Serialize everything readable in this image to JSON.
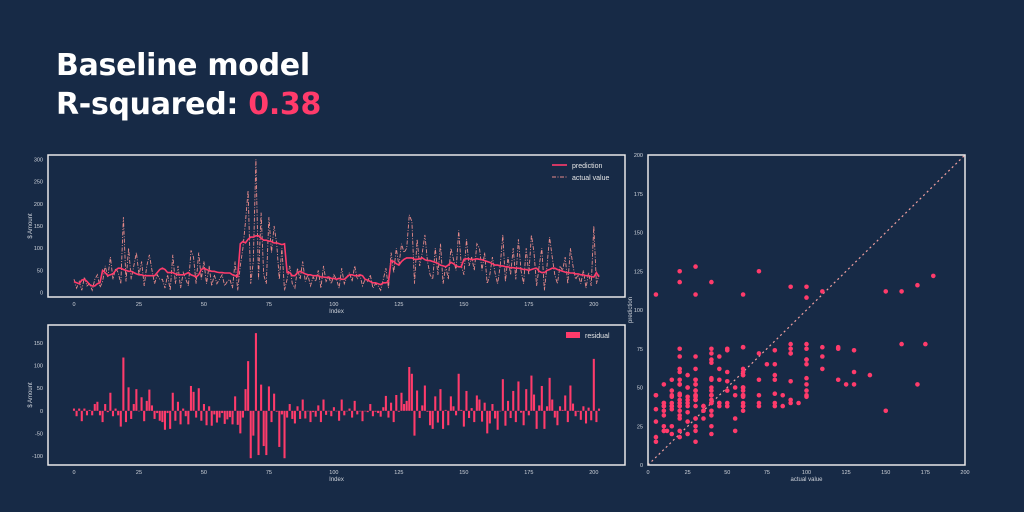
{
  "header": {
    "title_line1": "Baseline model",
    "r2_label": "R-squared:",
    "r2_value": "0.38",
    "accent_color": "#ff3b6b"
  },
  "colors": {
    "background": "#172a46",
    "prediction": "#ff3b6b",
    "actual": "#e98a8a",
    "residual": "#ff3b6b",
    "scatter": "#ff3b6b",
    "frame": "#e8e8e8"
  },
  "chart_data": [
    {
      "type": "line",
      "xlabel": "Index",
      "ylabel": "$ Amount",
      "xticks": [
        0,
        25,
        50,
        75,
        100,
        125,
        150,
        175,
        200
      ],
      "yticks": [
        0,
        50,
        100,
        150,
        200,
        250,
        300
      ],
      "xlim": [
        -10,
        212
      ],
      "ylim": [
        -10,
        310
      ],
      "grid": false,
      "legend": "top-right",
      "series": [
        {
          "name": "prediction",
          "style": "solid",
          "values": [
            25,
            22,
            20,
            28,
            30,
            25,
            18,
            15,
            15,
            20,
            22,
            50,
            45,
            38,
            40,
            42,
            50,
            55,
            55,
            52,
            50,
            48,
            48,
            45,
            42,
            40,
            40,
            38,
            38,
            38,
            38,
            38,
            45,
            52,
            55,
            52,
            45,
            45,
            45,
            42,
            40,
            40,
            40,
            42,
            45,
            40,
            38,
            35,
            40,
            52,
            55,
            52,
            50,
            48,
            48,
            46,
            45,
            45,
            44,
            44,
            44,
            40,
            38,
            36,
            110,
            115,
            112,
            120,
            125,
            125,
            128,
            128,
            122,
            118,
            118,
            116,
            115,
            112,
            112,
            110,
            108,
            110,
            45,
            45,
            38,
            38,
            45,
            48,
            45,
            42,
            40,
            40,
            38,
            38,
            38,
            35,
            35,
            34,
            35,
            32,
            32,
            30,
            32,
            30,
            30,
            35,
            40,
            40,
            38,
            38,
            40,
            38,
            30,
            28,
            25,
            22,
            22,
            20,
            18,
            22,
            22,
            25,
            72,
            70,
            65,
            62,
            70,
            75,
            78,
            78,
            78,
            75,
            75,
            76,
            78,
            74,
            72,
            72,
            70,
            68,
            66,
            62,
            60,
            58,
            62,
            68,
            65,
            60,
            58,
            58,
            75,
            76,
            76,
            74,
            75,
            76,
            75,
            74,
            72,
            70,
            68,
            65,
            62,
            62,
            60,
            60,
            58,
            58,
            56,
            56,
            55,
            55,
            54,
            52,
            52,
            50,
            52,
            54,
            55,
            48,
            45,
            45,
            50,
            52,
            55,
            55,
            52,
            50,
            48,
            46,
            45,
            44,
            44,
            42,
            42,
            40,
            40,
            38,
            38,
            36,
            35,
            45,
            35
          ]
        },
        {
          "name": "actual value",
          "style": "dash-dot",
          "values": [
            30,
            10,
            25,
            5,
            35,
            15,
            20,
            5,
            30,
            40,
            12,
            25,
            60,
            35,
            80,
            30,
            55,
            45,
            20,
            170,
            25,
            100,
            30,
            60,
            90,
            40,
            70,
            15,
            60,
            85,
            50,
            20,
            40,
            30,
            30,
            10,
            40,
            5,
            85,
            20,
            60,
            10,
            45,
            30,
            15,
            95,
            80,
            20,
            90,
            30,
            70,
            20,
            60,
            15,
            40,
            20,
            30,
            40,
            15,
            25,
            30,
            10,
            70,
            5,
            60,
            100,
            160,
            230,
            20,
            70,
            300,
            30,
            180,
            40,
            20,
            170,
            90,
            150,
            110,
            30,
            100,
            5,
            30,
            60,
            20,
            10,
            55,
            30,
            70,
            25,
            40,
            15,
            35,
            25,
            50,
            10,
            60,
            25,
            35,
            20,
            40,
            30,
            10,
            55,
            20,
            35,
            45,
            25,
            60,
            30,
            40,
            15,
            30,
            25,
            40,
            10,
            20,
            15,
            5,
            30,
            55,
            10,
            90,
            45,
            100,
            60,
            110,
            90,
            100,
            175,
            160,
            20,
            120,
            60,
            90,
            130,
            70,
            40,
            30,
            100,
            40,
            110,
            20,
            60,
            30,
            100,
            75,
            50,
            140,
            60,
            40,
            120,
            60,
            80,
            50,
            110,
            100,
            50,
            90,
            20,
            40,
            80,
            45,
            20,
            60,
            130,
            25,
            80,
            40,
            100,
            30,
            120,
            50,
            20,
            100,
            40,
            130,
            90,
            15,
            60,
            100,
            5,
            60,
            125,
            80,
            40,
            20,
            60,
            50,
            80,
            20,
            100,
            60,
            30,
            40,
            20,
            50,
            10,
            45,
            15,
            150,
            20,
            40
          ]
        }
      ]
    },
    {
      "type": "bar",
      "xlabel": "Index",
      "ylabel": "$ Amount",
      "xticks": [
        0,
        25,
        50,
        75,
        100,
        125,
        150,
        175,
        200
      ],
      "yticks": [
        -100,
        -50,
        0,
        50,
        100,
        150
      ],
      "xlim": [
        -10,
        212
      ],
      "ylim": [
        -120,
        190
      ],
      "grid": false,
      "legend": "top-right",
      "series": [
        {
          "name": "residual",
          "derived": "actual value - prediction"
        }
      ]
    },
    {
      "type": "scatter",
      "xlabel": "actual value",
      "ylabel": "prediction",
      "xticks": [
        0,
        25,
        50,
        75,
        100,
        125,
        150,
        175,
        200
      ],
      "yticks": [
        0,
        25,
        50,
        75,
        100,
        125,
        150,
        175,
        200
      ],
      "xlim": [
        0,
        200
      ],
      "ylim": [
        0,
        200
      ],
      "grid": false,
      "reference_line": "y = x (dashed)",
      "points": "x = actual value, y = prediction"
    }
  ]
}
